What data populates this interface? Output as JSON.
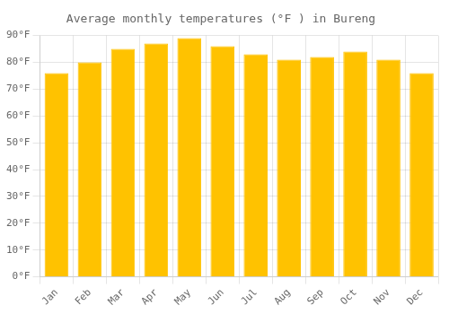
{
  "chart_data": {
    "type": "bar",
    "title": "Average monthly temperatures (°F ) in Bureng",
    "categories": [
      "Jan",
      "Feb",
      "Mar",
      "Apr",
      "May",
      "Jun",
      "Jul",
      "Aug",
      "Sep",
      "Oct",
      "Nov",
      "Dec"
    ],
    "values": [
      76,
      80,
      85,
      87,
      89,
      86,
      83,
      81,
      82,
      84,
      81,
      76
    ],
    "color": "#FFC200",
    "ylim": [
      0,
      90
    ],
    "yticks": [
      {
        "value": 0,
        "label": "0°F"
      },
      {
        "value": 10,
        "label": "10°F"
      },
      {
        "value": 20,
        "label": "20°F"
      },
      {
        "value": 30,
        "label": "30°F"
      },
      {
        "value": 40,
        "label": "40°F"
      },
      {
        "value": 50,
        "label": "50°F"
      },
      {
        "value": 60,
        "label": "60°F"
      },
      {
        "value": 70,
        "label": "70°F"
      },
      {
        "value": 80,
        "label": "80°F"
      },
      {
        "value": 90,
        "label": "90°F"
      }
    ],
    "grid": true
  }
}
